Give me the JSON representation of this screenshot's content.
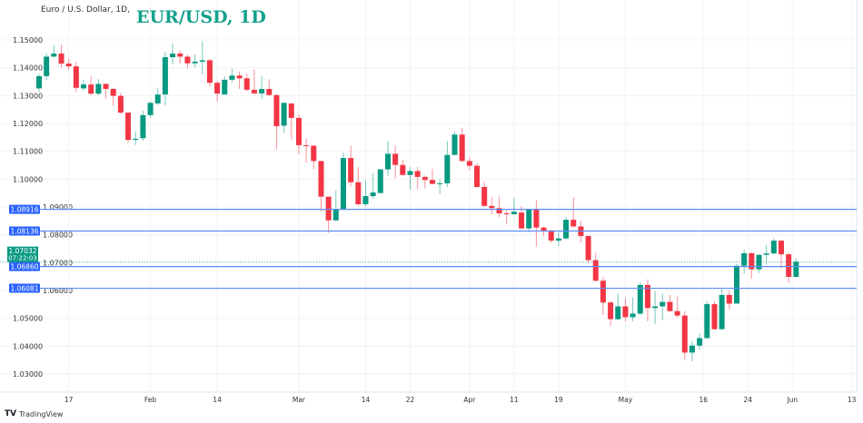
{
  "header": {
    "subtitle": "Euro / U.S. Dollar, 1D,",
    "title": "EUR/USD, 1D"
  },
  "footer": {
    "brand": "TradingView",
    "logo_icon": "tradingview-logo-icon"
  },
  "chart_data": {
    "type": "candlestick",
    "title": "EUR/USD, 1D",
    "ylim": [
      1.027,
      1.155
    ],
    "grid": true,
    "y_ticks": [
      "1.15000",
      "1.14000",
      "1.13000",
      "1.12000",
      "1.11000",
      "1.10000",
      "1.09000",
      "1.08000",
      "1.07000",
      "1.06000",
      "1.05000",
      "1.04000",
      "1.03000"
    ],
    "x_ticks": [
      {
        "label": "17",
        "index": 4
      },
      {
        "label": "Feb",
        "index": 15
      },
      {
        "label": "14",
        "index": 24
      },
      {
        "label": "Mar",
        "index": 35
      },
      {
        "label": "14",
        "index": 44
      },
      {
        "label": "22",
        "index": 50
      },
      {
        "label": "Apr",
        "index": 58
      },
      {
        "label": "11",
        "index": 64
      },
      {
        "label": "19",
        "index": 70
      },
      {
        "label": "May",
        "index": 79
      },
      {
        "label": "16",
        "index": 89.5
      },
      {
        "label": "24",
        "index": 95.5
      },
      {
        "label": "Jun",
        "index": 101.5
      },
      {
        "label": "13",
        "index": 109.5
      }
    ],
    "colors": {
      "up": "#089981",
      "down": "#f23645",
      "level_line": "#5b8cf5",
      "level_label": "#2962ff",
      "price_label": "#089981"
    },
    "levels": [
      "1.08916",
      "1.08136",
      "1.06860",
      "1.06081"
    ],
    "current_price": {
      "value": "1.07032",
      "countdown": "07:22:03"
    },
    "candles_ohlc": [
      [
        1.1326,
        1.1378,
        1.1313,
        1.137
      ],
      [
        1.137,
        1.1451,
        1.1355,
        1.144
      ],
      [
        1.144,
        1.148,
        1.1437,
        1.1451
      ],
      [
        1.1451,
        1.1482,
        1.14,
        1.1415
      ],
      [
        1.1415,
        1.1433,
        1.1393,
        1.1405
      ],
      [
        1.1405,
        1.142,
        1.1313,
        1.1328
      ],
      [
        1.1326,
        1.1357,
        1.1317,
        1.134
      ],
      [
        1.134,
        1.137,
        1.1302,
        1.1307
      ],
      [
        1.1307,
        1.1359,
        1.1301,
        1.1342
      ],
      [
        1.1342,
        1.1345,
        1.129,
        1.1324
      ],
      [
        1.1324,
        1.1328,
        1.1263,
        1.1299
      ],
      [
        1.1299,
        1.131,
        1.1234,
        1.1239
      ],
      [
        1.1239,
        1.1239,
        1.113,
        1.1141
      ],
      [
        1.1141,
        1.1172,
        1.1122,
        1.1145
      ],
      [
        1.1147,
        1.1247,
        1.1138,
        1.123
      ],
      [
        1.123,
        1.1279,
        1.122,
        1.1274
      ],
      [
        1.1272,
        1.1328,
        1.1266,
        1.1304
      ],
      [
        1.1304,
        1.1457,
        1.1266,
        1.1438
      ],
      [
        1.1438,
        1.1487,
        1.1413,
        1.1451
      ],
      [
        1.1451,
        1.1462,
        1.1415,
        1.144
      ],
      [
        1.144,
        1.1448,
        1.1397,
        1.1416
      ],
      [
        1.1416,
        1.1448,
        1.1402,
        1.1422
      ],
      [
        1.1422,
        1.1495,
        1.1375,
        1.1427
      ],
      [
        1.1427,
        1.1432,
        1.1332,
        1.1346
      ],
      [
        1.1346,
        1.1353,
        1.1279,
        1.1307
      ],
      [
        1.1304,
        1.137,
        1.1302,
        1.1357
      ],
      [
        1.1357,
        1.1397,
        1.1348,
        1.1372
      ],
      [
        1.1372,
        1.1386,
        1.1324,
        1.1362
      ],
      [
        1.1362,
        1.1378,
        1.1315,
        1.1321
      ],
      [
        1.1321,
        1.1393,
        1.1307,
        1.1308
      ],
      [
        1.1308,
        1.137,
        1.1288,
        1.1324
      ],
      [
        1.1324,
        1.1359,
        1.1299,
        1.1302
      ],
      [
        1.1302,
        1.1304,
        1.1107,
        1.119
      ],
      [
        1.1192,
        1.1276,
        1.1167,
        1.1274
      ],
      [
        1.1272,
        1.1272,
        1.1143,
        1.122
      ],
      [
        1.122,
        1.1233,
        1.1089,
        1.1122
      ],
      [
        1.1122,
        1.1146,
        1.1059,
        1.112
      ],
      [
        1.112,
        1.1122,
        1.1035,
        1.1065
      ],
      [
        1.1065,
        1.1065,
        1.0885,
        1.0937
      ],
      [
        1.0937,
        1.0937,
        1.0807,
        1.0852
      ],
      [
        1.0852,
        1.0959,
        1.085,
        1.0893
      ],
      [
        1.0893,
        1.1095,
        1.089,
        1.1076
      ],
      [
        1.1076,
        1.112,
        1.0975,
        1.0989
      ],
      [
        1.0989,
        1.1043,
        1.0904,
        1.091
      ],
      [
        1.091,
        1.0996,
        1.0902,
        1.0939
      ],
      [
        1.0939,
        1.1022,
        1.0928,
        1.0952
      ],
      [
        1.095,
        1.1037,
        1.095,
        1.1035
      ],
      [
        1.1035,
        1.1138,
        1.1011,
        1.1091
      ],
      [
        1.1091,
        1.112,
        1.1004,
        1.1051
      ],
      [
        1.1051,
        1.107,
        1.1013,
        1.1015
      ],
      [
        1.1015,
        1.1043,
        1.0962,
        1.1029
      ],
      [
        1.1029,
        1.1043,
        1.0964,
        1.1008
      ],
      [
        1.1008,
        1.1013,
        1.0967,
        1.0997
      ],
      [
        1.0997,
        1.1037,
        1.0982,
        1.0983
      ],
      [
        1.0983,
        1.1,
        1.0946,
        1.0985
      ],
      [
        1.0985,
        1.1138,
        1.0972,
        1.1087
      ],
      [
        1.1087,
        1.1171,
        1.1085,
        1.116
      ],
      [
        1.116,
        1.1185,
        1.1063,
        1.1065
      ],
      [
        1.1065,
        1.1078,
        1.1033,
        1.1048
      ],
      [
        1.1048,
        1.1057,
        1.097,
        1.0972
      ],
      [
        1.0972,
        1.0989,
        1.0902,
        1.0904
      ],
      [
        1.0904,
        1.0937,
        1.0874,
        1.0896
      ],
      [
        1.0896,
        1.0937,
        1.0863,
        1.0877
      ],
      [
        1.0877,
        1.0888,
        1.0837,
        1.0874
      ],
      [
        1.0874,
        1.0932,
        1.0872,
        1.0883
      ],
      [
        1.088,
        1.0902,
        1.082,
        1.0823
      ],
      [
        1.0823,
        1.0891,
        1.0809,
        1.0891
      ],
      [
        1.0891,
        1.0924,
        1.0758,
        1.0826
      ],
      [
        1.0826,
        1.083,
        1.0796,
        1.0812
      ],
      [
        1.0812,
        1.082,
        1.0772,
        1.0779
      ],
      [
        1.0779,
        1.0809,
        1.0761,
        1.0787
      ],
      [
        1.0787,
        1.0865,
        1.0783,
        1.0854
      ],
      [
        1.0854,
        1.0935,
        1.0828,
        1.083
      ],
      [
        1.083,
        1.085,
        1.0772,
        1.0796
      ],
      [
        1.0796,
        1.0796,
        1.0698,
        1.0709
      ],
      [
        1.0709,
        1.0736,
        1.0633,
        1.0635
      ],
      [
        1.0635,
        1.0649,
        1.0513,
        1.0557
      ],
      [
        1.0557,
        1.0562,
        1.0472,
        1.0497
      ],
      [
        1.0497,
        1.0589,
        1.0493,
        1.0543
      ],
      [
        1.0543,
        1.0573,
        1.0489,
        1.0504
      ],
      [
        1.0504,
        1.0576,
        1.0489,
        1.0517
      ],
      [
        1.0517,
        1.0629,
        1.0513,
        1.062
      ],
      [
        1.062,
        1.064,
        1.0489,
        1.0537
      ],
      [
        1.0537,
        1.0598,
        1.048,
        1.0543
      ],
      [
        1.0543,
        1.0589,
        1.0493,
        1.0559
      ],
      [
        1.0559,
        1.0584,
        1.0524,
        1.0526
      ],
      [
        1.0526,
        1.0579,
        1.0502,
        1.051
      ],
      [
        1.051,
        1.0526,
        1.035,
        1.0377
      ],
      [
        1.0377,
        1.0417,
        1.0345,
        1.0402
      ],
      [
        1.0402,
        1.0445,
        1.0388,
        1.0429
      ],
      [
        1.0429,
        1.0562,
        1.0426,
        1.0551
      ],
      [
        1.0551,
        1.0562,
        1.0459,
        1.0461
      ],
      [
        1.0461,
        1.0605,
        1.0459,
        1.0584
      ],
      [
        1.0584,
        1.0598,
        1.0533,
        1.0553
      ],
      [
        1.0553,
        1.0695,
        1.0553,
        1.0689
      ],
      [
        1.0689,
        1.0747,
        1.066,
        1.0734
      ],
      [
        1.0734,
        1.0738,
        1.0641,
        1.0676
      ],
      [
        1.0676,
        1.073,
        1.0663,
        1.0728
      ],
      [
        1.0728,
        1.0763,
        1.0696,
        1.0733
      ],
      [
        1.0733,
        1.0787,
        1.073,
        1.0779
      ],
      [
        1.0779,
        1.0779,
        1.0678,
        1.073
      ],
      [
        1.073,
        1.0736,
        1.0627,
        1.0649
      ],
      [
        1.0649,
        1.0715,
        1.0645,
        1.07032
      ]
    ]
  }
}
